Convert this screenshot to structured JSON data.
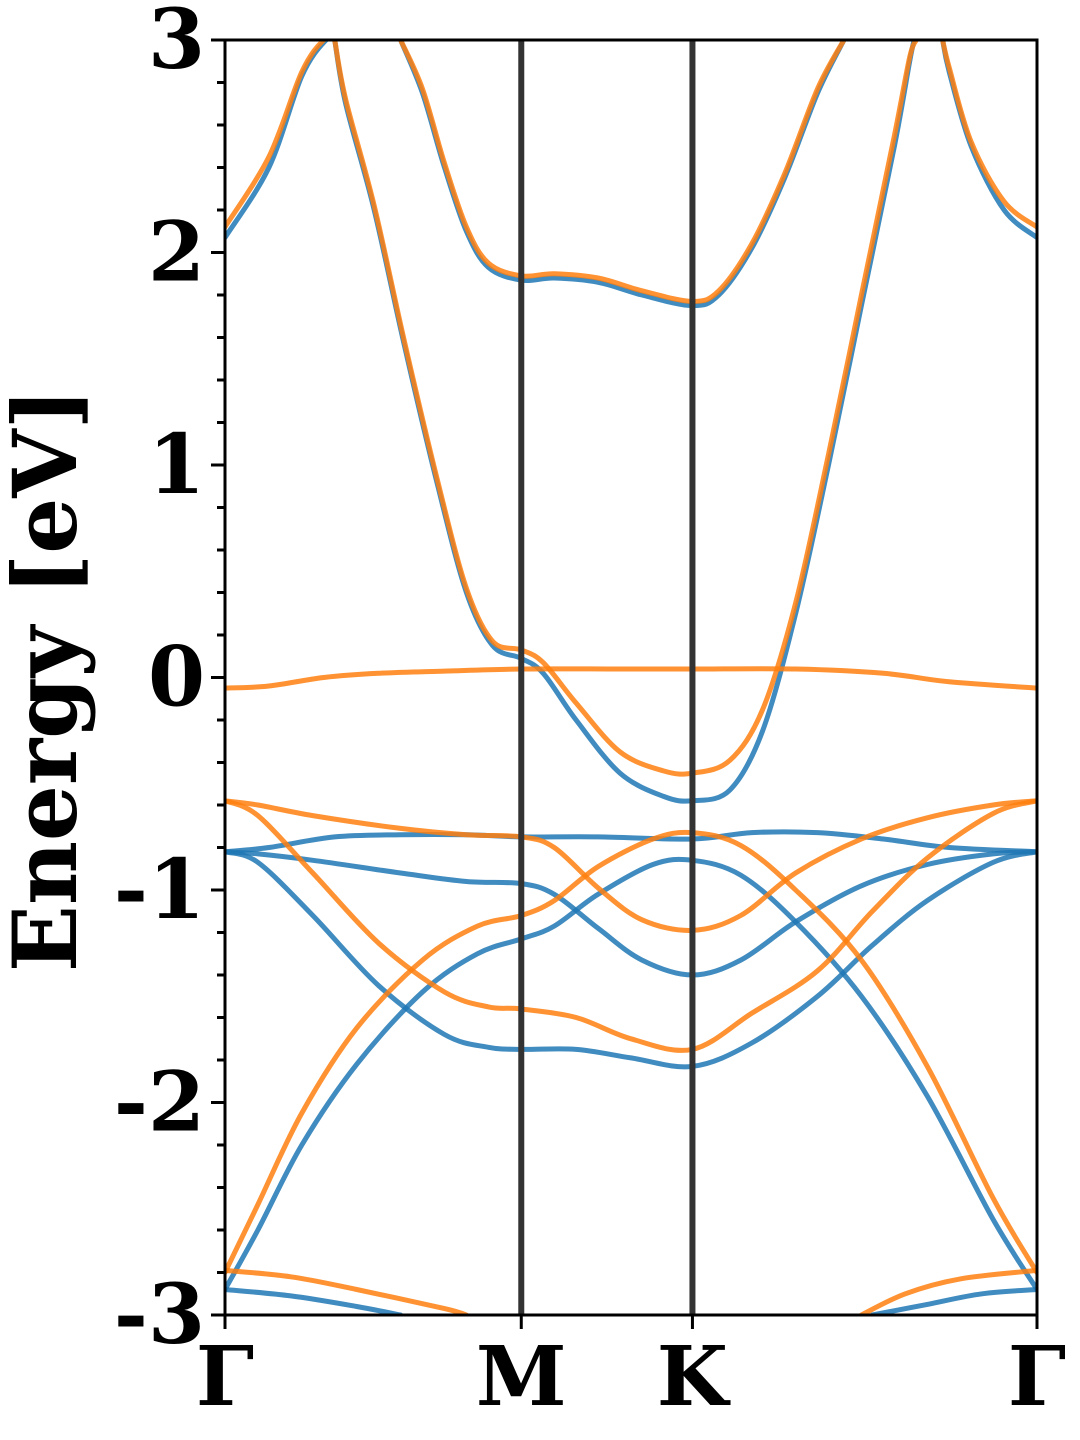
{
  "chart_data": {
    "type": "line",
    "title": "",
    "xlabel": "",
    "ylabel": "Energy [eV]",
    "ylim": [
      -3,
      3
    ],
    "xlim": [
      0,
      3.7
    ],
    "y_major_ticks": [
      -3,
      -2,
      -1,
      0,
      1,
      2,
      3
    ],
    "y_tick_labels": [
      "-3",
      "-2",
      "-1",
      "0",
      "1",
      "2",
      "3"
    ],
    "y_minor_step": 0.2,
    "k_points": [
      {
        "label": "Γ",
        "x": 0
      },
      {
        "label": "M",
        "x": 1.35
      },
      {
        "label": "K",
        "x": 2.13
      },
      {
        "label": "Γ",
        "x": 3.7
      }
    ],
    "grid": false,
    "legend": "none",
    "colors": {
      "spin_up": "#1f77b4",
      "spin_down": "#ff7f0e",
      "kline": "#333333"
    },
    "series": [
      {
        "color_key": "spin_up",
        "values": [
          [
            0,
            2.07
          ],
          [
            0.2,
            2.4
          ],
          [
            0.35,
            2.83
          ],
          [
            0.46,
            3.0
          ],
          [
            0.5,
            3.0
          ]
        ]
      },
      {
        "color_key": "spin_down",
        "values": [
          [
            0,
            2.12
          ],
          [
            0.2,
            2.45
          ],
          [
            0.35,
            2.85
          ],
          [
            0.45,
            3.0
          ],
          [
            0.5,
            3.0
          ]
        ]
      },
      {
        "color_key": "spin_up",
        "values": [
          [
            0.5,
            3.0
          ],
          [
            0.55,
            2.7
          ],
          [
            0.68,
            2.2
          ],
          [
            0.82,
            1.55
          ],
          [
            0.97,
            0.9
          ],
          [
            1.1,
            0.4
          ],
          [
            1.22,
            0.15
          ],
          [
            1.35,
            0.09
          ],
          [
            1.45,
            0.02
          ],
          [
            1.6,
            -0.2
          ],
          [
            1.8,
            -0.45
          ],
          [
            2.0,
            -0.56
          ],
          [
            2.13,
            -0.58
          ],
          [
            2.3,
            -0.53
          ],
          [
            2.45,
            -0.25
          ],
          [
            2.6,
            0.3
          ],
          [
            2.75,
            1.0
          ],
          [
            2.9,
            1.75
          ],
          [
            3.05,
            2.5
          ],
          [
            3.12,
            2.9
          ],
          [
            3.14,
            3.0
          ]
        ]
      },
      {
        "color_key": "spin_down",
        "values": [
          [
            0.5,
            3.0
          ],
          [
            0.55,
            2.72
          ],
          [
            0.68,
            2.22
          ],
          [
            0.82,
            1.57
          ],
          [
            0.97,
            0.92
          ],
          [
            1.1,
            0.42
          ],
          [
            1.22,
            0.17
          ],
          [
            1.35,
            0.13
          ],
          [
            1.45,
            0.07
          ],
          [
            1.6,
            -0.12
          ],
          [
            1.8,
            -0.35
          ],
          [
            2.0,
            -0.44
          ],
          [
            2.13,
            -0.45
          ],
          [
            2.3,
            -0.39
          ],
          [
            2.45,
            -0.15
          ],
          [
            2.6,
            0.35
          ],
          [
            2.75,
            1.05
          ],
          [
            2.9,
            1.8
          ],
          [
            3.05,
            2.55
          ],
          [
            3.12,
            2.92
          ],
          [
            3.15,
            3.0
          ]
        ]
      },
      {
        "color_key": "spin_up",
        "values": [
          [
            0.8,
            3.0
          ],
          [
            0.9,
            2.75
          ],
          [
            1.0,
            2.4
          ],
          [
            1.1,
            2.1
          ],
          [
            1.2,
            1.93
          ],
          [
            1.35,
            1.87
          ],
          [
            1.5,
            1.88
          ],
          [
            1.7,
            1.86
          ],
          [
            1.9,
            1.8
          ],
          [
            2.13,
            1.75
          ],
          [
            2.25,
            1.8
          ],
          [
            2.4,
            2.02
          ],
          [
            2.55,
            2.35
          ],
          [
            2.7,
            2.75
          ],
          [
            2.82,
            3.0
          ]
        ]
      },
      {
        "color_key": "spin_down",
        "values": [
          [
            0.8,
            3.0
          ],
          [
            0.9,
            2.77
          ],
          [
            1.0,
            2.42
          ],
          [
            1.1,
            2.12
          ],
          [
            1.2,
            1.95
          ],
          [
            1.35,
            1.89
          ],
          [
            1.5,
            1.9
          ],
          [
            1.7,
            1.88
          ],
          [
            1.9,
            1.82
          ],
          [
            2.13,
            1.77
          ],
          [
            2.25,
            1.82
          ],
          [
            2.4,
            2.04
          ],
          [
            2.55,
            2.37
          ],
          [
            2.7,
            2.77
          ],
          [
            2.82,
            3.0
          ]
        ]
      },
      {
        "color_key": "spin_up",
        "values": [
          [
            3.27,
            3.0
          ],
          [
            3.3,
            2.85
          ],
          [
            3.4,
            2.5
          ],
          [
            3.55,
            2.2
          ],
          [
            3.7,
            2.07
          ]
        ]
      },
      {
        "color_key": "spin_down",
        "values": [
          [
            3.27,
            3.0
          ],
          [
            3.3,
            2.87
          ],
          [
            3.4,
            2.52
          ],
          [
            3.55,
            2.24
          ],
          [
            3.7,
            2.12
          ]
        ]
      },
      {
        "color_key": "spin_down",
        "values": [
          [
            0,
            -0.05
          ],
          [
            0.2,
            -0.04
          ],
          [
            0.45,
            0.0
          ],
          [
            0.7,
            0.02
          ],
          [
            1.0,
            0.03
          ],
          [
            1.35,
            0.04
          ],
          [
            1.8,
            0.04
          ],
          [
            2.13,
            0.04
          ],
          [
            2.6,
            0.04
          ],
          [
            3.0,
            0.02
          ],
          [
            3.3,
            -0.02
          ],
          [
            3.7,
            -0.05
          ]
        ]
      },
      {
        "color_key": "spin_up",
        "values": [
          [
            0,
            -0.82
          ],
          [
            0.2,
            -0.8
          ],
          [
            0.5,
            -0.75
          ],
          [
            0.8,
            -0.74
          ],
          [
            1.1,
            -0.74
          ],
          [
            1.35,
            -0.75
          ],
          [
            1.7,
            -0.75
          ],
          [
            2.13,
            -0.76
          ],
          [
            2.4,
            -0.73
          ],
          [
            2.7,
            -0.73
          ],
          [
            3.0,
            -0.76
          ],
          [
            3.3,
            -0.8
          ],
          [
            3.7,
            -0.82
          ]
        ]
      },
      {
        "color_key": "spin_up",
        "values": [
          [
            0,
            -0.82
          ],
          [
            0.15,
            -0.83
          ],
          [
            0.4,
            -0.86
          ],
          [
            0.8,
            -0.92
          ],
          [
            1.1,
            -0.96
          ],
          [
            1.35,
            -0.97
          ],
          [
            1.5,
            -1.02
          ],
          [
            1.7,
            -1.18
          ],
          [
            1.9,
            -1.33
          ],
          [
            2.13,
            -1.4
          ],
          [
            2.35,
            -1.33
          ],
          [
            2.6,
            -1.15
          ],
          [
            2.9,
            -0.98
          ],
          [
            3.2,
            -0.88
          ],
          [
            3.5,
            -0.83
          ],
          [
            3.7,
            -0.82
          ]
        ]
      },
      {
        "color_key": "spin_up",
        "values": [
          [
            0,
            -0.82
          ],
          [
            0.15,
            -0.87
          ],
          [
            0.4,
            -1.12
          ],
          [
            0.7,
            -1.45
          ],
          [
            1.0,
            -1.68
          ],
          [
            1.2,
            -1.74
          ],
          [
            1.35,
            -1.75
          ],
          [
            1.6,
            -1.75
          ],
          [
            1.85,
            -1.79
          ],
          [
            2.13,
            -1.83
          ],
          [
            2.4,
            -1.72
          ],
          [
            2.7,
            -1.5
          ],
          [
            2.95,
            -1.26
          ],
          [
            3.2,
            -1.05
          ],
          [
            3.5,
            -0.87
          ],
          [
            3.7,
            -0.82
          ]
        ]
      },
      {
        "color_key": "spin_up",
        "values": [
          [
            0,
            -2.88
          ],
          [
            0.15,
            -2.6
          ],
          [
            0.35,
            -2.2
          ],
          [
            0.6,
            -1.82
          ],
          [
            0.9,
            -1.48
          ],
          [
            1.15,
            -1.3
          ],
          [
            1.35,
            -1.23
          ],
          [
            1.5,
            -1.17
          ],
          [
            1.7,
            -1.02
          ],
          [
            1.95,
            -0.88
          ],
          [
            2.13,
            -0.86
          ],
          [
            2.35,
            -0.93
          ],
          [
            2.6,
            -1.15
          ],
          [
            2.9,
            -1.5
          ],
          [
            3.2,
            -1.97
          ],
          [
            3.5,
            -2.55
          ],
          [
            3.7,
            -2.88
          ]
        ]
      },
      {
        "color_key": "spin_down",
        "values": [
          [
            0,
            -0.58
          ],
          [
            0.15,
            -0.6
          ],
          [
            0.4,
            -0.65
          ],
          [
            0.8,
            -0.71
          ],
          [
            1.1,
            -0.74
          ],
          [
            1.35,
            -0.75
          ],
          [
            1.5,
            -0.8
          ],
          [
            1.7,
            -0.99
          ],
          [
            1.9,
            -1.14
          ],
          [
            2.13,
            -1.19
          ],
          [
            2.35,
            -1.12
          ],
          [
            2.6,
            -0.92
          ],
          [
            2.9,
            -0.76
          ],
          [
            3.2,
            -0.66
          ],
          [
            3.5,
            -0.6
          ],
          [
            3.7,
            -0.58
          ]
        ]
      },
      {
        "color_key": "spin_down",
        "values": [
          [
            0,
            -0.58
          ],
          [
            0.15,
            -0.65
          ],
          [
            0.4,
            -0.92
          ],
          [
            0.7,
            -1.25
          ],
          [
            1.0,
            -1.48
          ],
          [
            1.2,
            -1.55
          ],
          [
            1.35,
            -1.56
          ],
          [
            1.6,
            -1.6
          ],
          [
            1.85,
            -1.7
          ],
          [
            2.13,
            -1.75
          ],
          [
            2.4,
            -1.58
          ],
          [
            2.7,
            -1.38
          ],
          [
            2.95,
            -1.1
          ],
          [
            3.2,
            -0.85
          ],
          [
            3.5,
            -0.64
          ],
          [
            3.7,
            -0.58
          ]
        ]
      },
      {
        "color_key": "spin_down",
        "values": [
          [
            0,
            -2.8
          ],
          [
            0.15,
            -2.48
          ],
          [
            0.35,
            -2.05
          ],
          [
            0.6,
            -1.65
          ],
          [
            0.9,
            -1.33
          ],
          [
            1.15,
            -1.17
          ],
          [
            1.35,
            -1.12
          ],
          [
            1.5,
            -1.05
          ],
          [
            1.7,
            -0.89
          ],
          [
            1.95,
            -0.76
          ],
          [
            2.13,
            -0.73
          ],
          [
            2.35,
            -0.79
          ],
          [
            2.6,
            -1.0
          ],
          [
            2.9,
            -1.33
          ],
          [
            3.2,
            -1.83
          ],
          [
            3.5,
            -2.45
          ],
          [
            3.7,
            -2.8
          ]
        ]
      },
      {
        "color_key": "spin_up",
        "values": [
          [
            0,
            -2.88
          ],
          [
            0.3,
            -2.91
          ],
          [
            0.6,
            -2.96
          ],
          [
            0.8,
            -3.0
          ]
        ]
      },
      {
        "color_key": "spin_down",
        "values": [
          [
            0,
            -2.79
          ],
          [
            0.3,
            -2.82
          ],
          [
            0.6,
            -2.88
          ],
          [
            1.0,
            -2.97
          ],
          [
            1.1,
            -3.0
          ]
        ]
      },
      {
        "color_key": "spin_up",
        "values": [
          [
            2.95,
            -3.0
          ],
          [
            3.2,
            -2.95
          ],
          [
            3.45,
            -2.9
          ],
          [
            3.7,
            -2.88
          ]
        ]
      },
      {
        "color_key": "spin_down",
        "values": [
          [
            2.9,
            -3.0
          ],
          [
            3.1,
            -2.9
          ],
          [
            3.35,
            -2.83
          ],
          [
            3.7,
            -2.79
          ]
        ]
      }
    ]
  }
}
